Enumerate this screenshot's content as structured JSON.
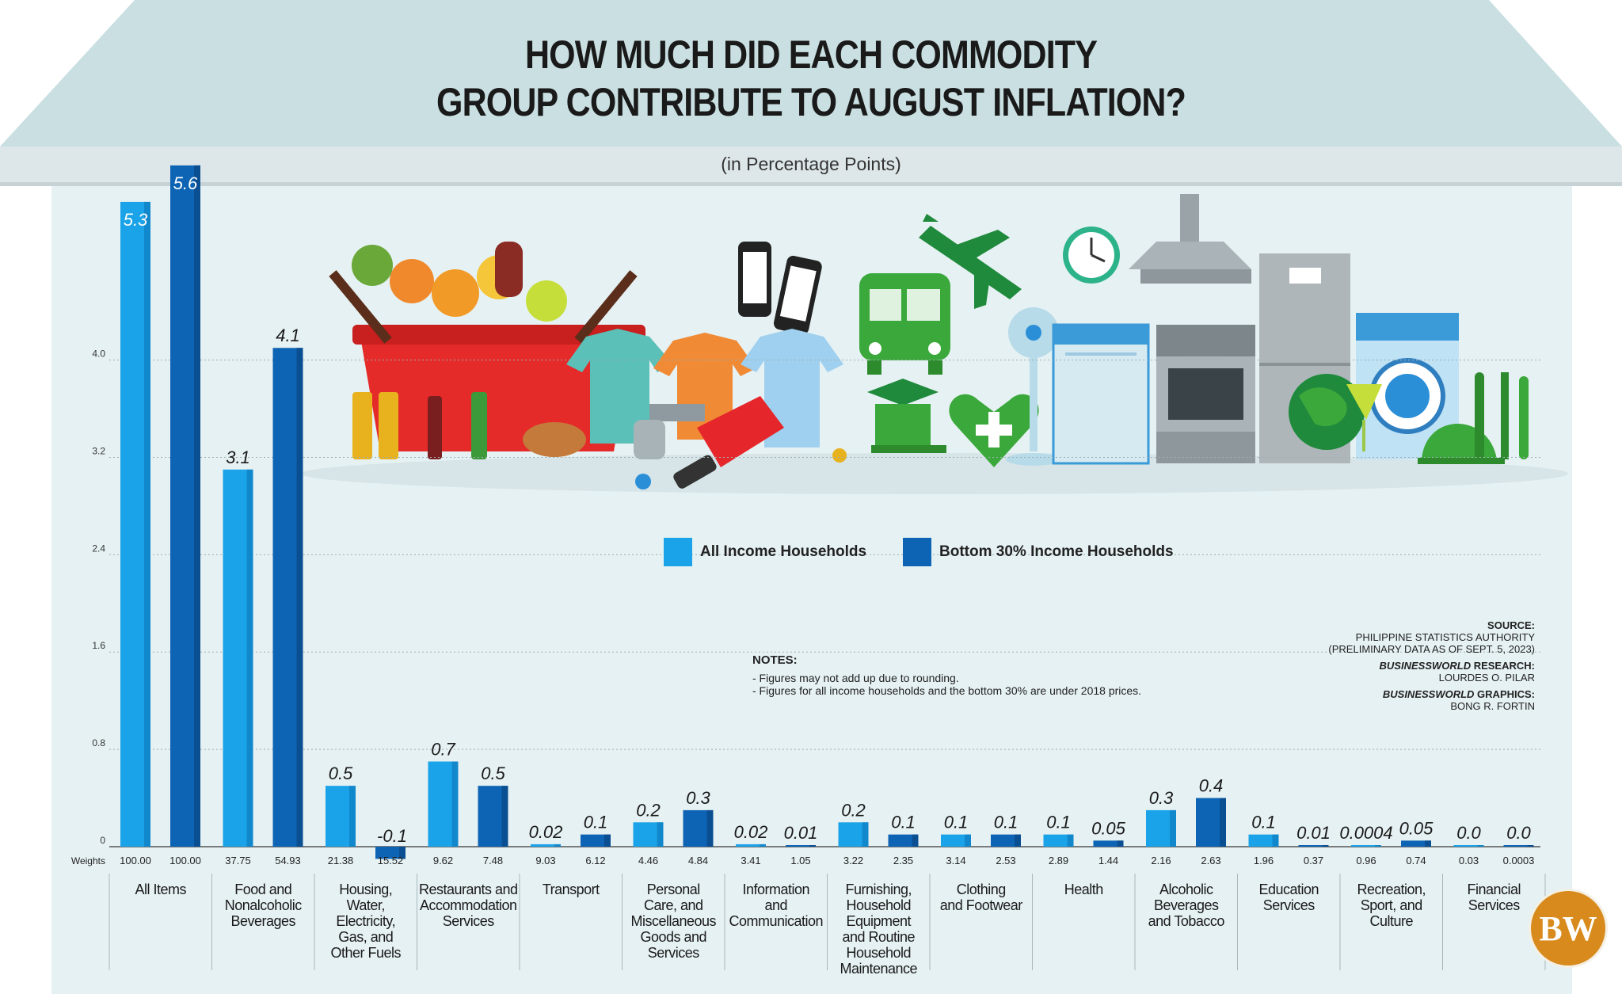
{
  "title_line1": "HOW MUCH DID EACH COMMODITY",
  "title_line2": "GROUP CONTRIBUTE TO AUGUST INFLATION?",
  "subtitle": "(in Percentage Points)",
  "legend": [
    {
      "label": "All Income Households",
      "color": "#1aa3e8"
    },
    {
      "label": "Bottom 30% Income Households",
      "color": "#0e64b4"
    }
  ],
  "notes": {
    "heading": "NOTES:",
    "lines": [
      "- Figures may not add up due to rounding.",
      "- Figures for all income households and the bottom 30% are under 2018 prices."
    ]
  },
  "credits": {
    "source_label": "SOURCE:",
    "source_line1": "PHILIPPINE STATISTICS AUTHORITY",
    "source_line2": "(PRELIMINARY DATA AS OF SEPT. 5, 2023)",
    "research_label_italic": "BUSINESSWORLD",
    "research_label_rest": " RESEARCH:",
    "research_name": "LOURDES O. PILAR",
    "graphics_label_italic": "BUSINESSWORLD",
    "graphics_label_rest": " GRAPHICS:",
    "graphics_name": "BONG R. FORTIN"
  },
  "logo_text": "BW",
  "chart_data": {
    "type": "bar",
    "ylim": [
      0,
      5.6
    ],
    "yticks": [
      "0",
      "0.8",
      "1.6",
      "2.4",
      "3.2",
      "4.0"
    ],
    "weights_label": "Weights",
    "categories": [
      "All Items",
      "Food and Nonalcoholic Beverages",
      "Housing, Water, Electricity, Gas, and Other Fuels",
      "Restaurants and Accommodation Services",
      "Transport",
      "Personal Care, and Miscellaneous Goods and Services",
      "Information and Communication",
      "Furnishing, Household Equipment and Routine Household Maintenance",
      "Clothing and Footwear",
      "Health",
      "Alcoholic Beverages and Tobacco",
      "Education Services",
      "Recreation, Sport, and Culture",
      "Financial Services"
    ],
    "category_lines": [
      [
        "All Items"
      ],
      [
        "Food and",
        "Nonalcoholic",
        "Beverages"
      ],
      [
        "Housing,",
        "Water,",
        "Electricity,",
        "Gas, and",
        "Other Fuels"
      ],
      [
        "Restaurants and",
        "Accommodation",
        "Services"
      ],
      [
        "Transport"
      ],
      [
        "Personal",
        "Care, and",
        "Miscellaneous",
        "Goods and",
        "Services"
      ],
      [
        "Information",
        "and",
        "Communication"
      ],
      [
        "Furnishing,",
        "Household",
        "Equipment",
        "and Routine",
        "Household",
        "Maintenance"
      ],
      [
        "Clothing",
        "and Footwear"
      ],
      [
        "Health"
      ],
      [
        "Alcoholic",
        "Beverages",
        "and Tobacco"
      ],
      [
        "Education",
        "Services"
      ],
      [
        "Recreation,",
        "Sport, and",
        "Culture"
      ],
      [
        "Financial",
        "Services"
      ]
    ],
    "series": [
      {
        "name": "All Income Households",
        "color": "#1aa3e8",
        "values": [
          5.3,
          3.1,
          0.5,
          0.7,
          0.02,
          0.2,
          0.02,
          0.2,
          0.1,
          0.1,
          0.3,
          0.1,
          0.0004,
          0.0
        ],
        "labels": [
          "5.3",
          "3.1",
          "0.5",
          "0.7",
          "0.02",
          "0.2",
          "0.02",
          "0.2",
          "0.1",
          "0.1",
          "0.3",
          "0.1",
          "0.0004",
          "0.0"
        ],
        "weights": [
          "100.00",
          "37.75",
          "21.38",
          "9.62",
          "9.03",
          "4.46",
          "3.41",
          "3.22",
          "3.14",
          "2.89",
          "2.16",
          "1.96",
          "0.96",
          "0.03"
        ]
      },
      {
        "name": "Bottom 30% Income Households",
        "color": "#0e64b4",
        "values": [
          5.6,
          4.1,
          -0.1,
          0.5,
          0.1,
          0.3,
          0.01,
          0.1,
          0.1,
          0.05,
          0.4,
          0.01,
          0.05,
          0.0
        ],
        "labels": [
          "5.6",
          "4.1",
          "-0.1",
          "0.5",
          "0.1",
          "0.3",
          "0.01",
          "0.1",
          "0.1",
          "0.05",
          "0.4",
          "0.01",
          "0.05",
          "0.0"
        ],
        "weights": [
          "100.00",
          "54.93",
          "15.52",
          "7.48",
          "6.12",
          "4.84",
          "1.05",
          "2.35",
          "2.53",
          "1.44",
          "2.63",
          "0.37",
          "0.74",
          "0.0003"
        ]
      }
    ]
  }
}
